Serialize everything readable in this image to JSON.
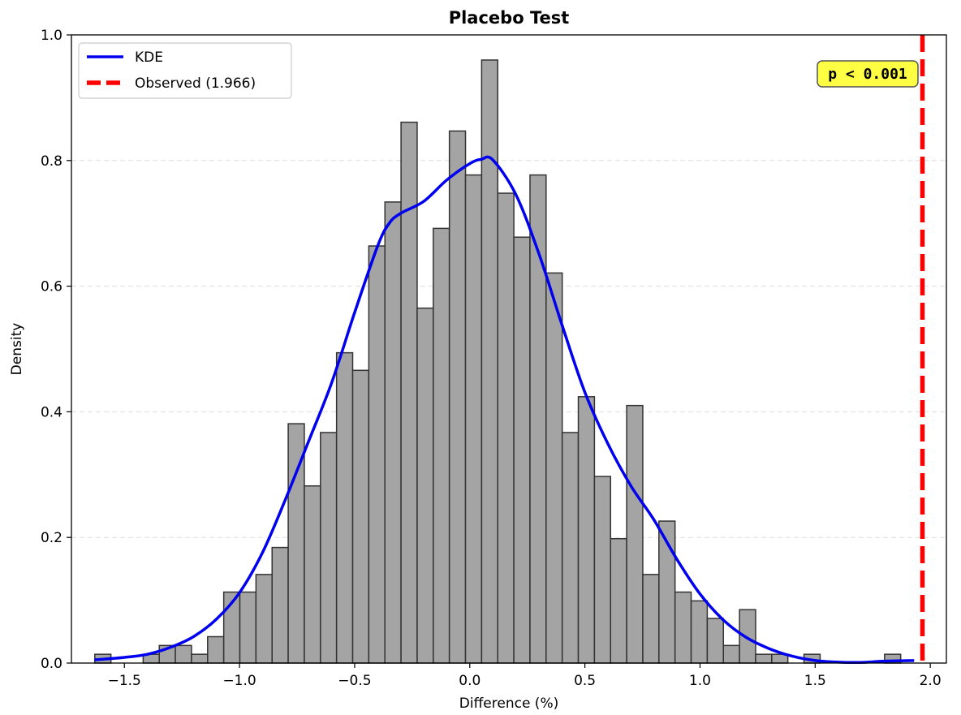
{
  "chart_data": {
    "type": "bar",
    "title": "Placebo Test",
    "xlabel": "Difference (%)",
    "ylabel": "Density",
    "xlim": [
      -1.73,
      2.07
    ],
    "ylim": [
      0.0,
      1.0
    ],
    "xticks": [
      -1.5,
      -1.0,
      -0.5,
      0.0,
      0.5,
      1.0,
      1.5,
      2.0
    ],
    "xtick_labels": [
      "−1.5",
      "−1.0",
      "−0.5",
      "0.0",
      "0.5",
      "1.0",
      "1.5",
      "2.0"
    ],
    "yticks": [
      0.0,
      0.2,
      0.4,
      0.6,
      0.8,
      1.0
    ],
    "ytick_labels": [
      "0.0",
      "0.2",
      "0.4",
      "0.6",
      "0.8",
      "1.0"
    ],
    "grid": "y-dashed",
    "legend_position": "top-left",
    "histogram": {
      "name": "",
      "bin_start": -1.6285,
      "bin_width": 0.07,
      "densities": [
        0.014,
        0.0,
        0.0,
        0.014,
        0.028,
        0.028,
        0.014,
        0.042,
        0.113,
        0.113,
        0.141,
        0.184,
        0.381,
        0.282,
        0.367,
        0.494,
        0.466,
        0.664,
        0.734,
        0.861,
        0.565,
        0.692,
        0.847,
        0.777,
        0.96,
        0.748,
        0.678,
        0.777,
        0.621,
        0.367,
        0.424,
        0.297,
        0.198,
        0.41,
        0.141,
        0.226,
        0.113,
        0.099,
        0.071,
        0.028,
        0.085,
        0.014,
        0.014,
        0.0,
        0.014,
        0.0,
        0.0,
        0.0,
        0.0,
        0.014
      ],
      "color": "#a4a4a4",
      "edge_color": "#333333"
    },
    "kde": {
      "name": "KDE",
      "color": "#0000ee",
      "x": [
        -1.63,
        -1.5,
        -1.4,
        -1.3,
        -1.2,
        -1.1,
        -1.0,
        -0.9,
        -0.8,
        -0.7,
        -0.6,
        -0.5,
        -0.4,
        -0.35,
        -0.3,
        -0.2,
        -0.1,
        0.0,
        0.05,
        0.1,
        0.2,
        0.3,
        0.4,
        0.5,
        0.6,
        0.7,
        0.8,
        0.9,
        1.0,
        1.1,
        1.2,
        1.3,
        1.4,
        1.5,
        1.6,
        1.7,
        1.8,
        1.93
      ],
      "y": [
        0.005,
        0.009,
        0.014,
        0.025,
        0.042,
        0.07,
        0.112,
        0.176,
        0.261,
        0.353,
        0.446,
        0.558,
        0.664,
        0.7,
        0.716,
        0.735,
        0.769,
        0.795,
        0.802,
        0.801,
        0.746,
        0.652,
        0.539,
        0.431,
        0.349,
        0.282,
        0.228,
        0.165,
        0.11,
        0.069,
        0.041,
        0.023,
        0.011,
        0.004,
        0.0015,
        0.001,
        0.003,
        0.004
      ]
    },
    "observed": {
      "name": "Observed (1.966)",
      "value": 1.966,
      "color": "#ff0000"
    },
    "annotation": {
      "text": "p < 0.001",
      "background": "#ffff44"
    }
  }
}
